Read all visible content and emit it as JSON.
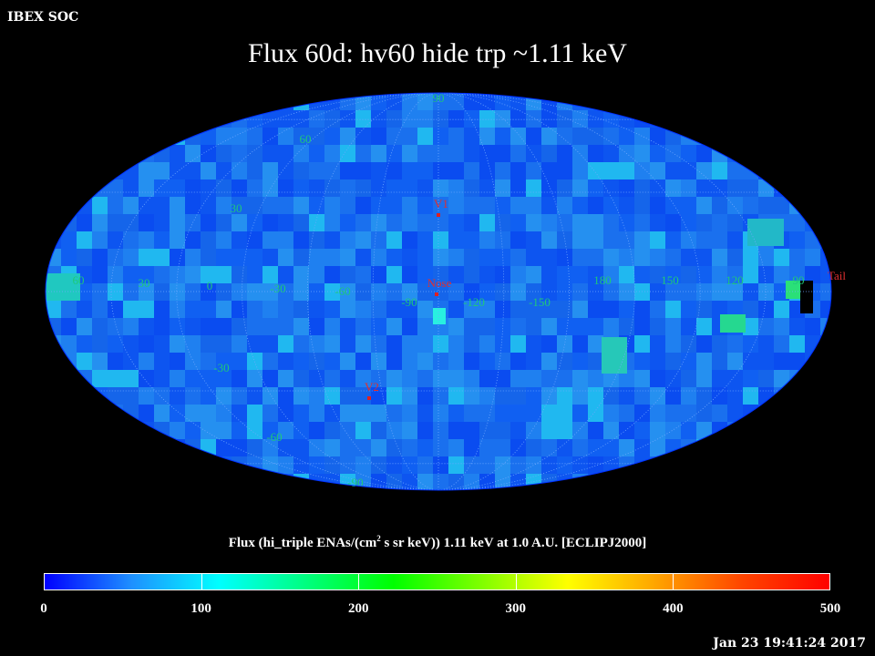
{
  "header": {
    "source": "IBEX SOC",
    "timestamp": "Jan 23 19:41:24 2017"
  },
  "chart_data": {
    "type": "heatmap",
    "projection": "aitoff/hammer all-sky",
    "title": "Flux   60d: hv60 hide trp ~1.11 keV",
    "colorbar_label": "Flux (hi_triple ENAs/(cm",
    "colorbar_label_sup": "2",
    "colorbar_label_tail": " s sr keV))  1.11 keV at 1.0 A.U. [ECLIPJ2000]",
    "colorbar_ticks": [
      "0",
      "100",
      "200",
      "300",
      "400",
      "500"
    ],
    "colorbar_range": [
      0,
      500
    ],
    "colormap": [
      "#0000ff",
      "#1e90ff",
      "#00ffff",
      "#00ff7f",
      "#00ff00",
      "#7fff00",
      "#ffff00",
      "#ffa500",
      "#ff4500",
      "#ff0000"
    ],
    "lon_labels": [
      "60",
      "30",
      "0",
      "-30",
      "-60",
      "-90",
      "-120",
      "-150",
      "180",
      "150",
      "120",
      "90"
    ],
    "lat_labels": [
      "90",
      "60",
      "30",
      "-30",
      "-60",
      "-90"
    ],
    "markers": [
      {
        "name": "V1",
        "lon": -105,
        "lat": 35
      },
      {
        "name": "Nose",
        "lon": -105,
        "lat": 5
      },
      {
        "name": "V2",
        "lon": -70,
        "lat": -32
      },
      {
        "name": "Tail",
        "lon": 75,
        "lat": 2
      }
    ],
    "features": [
      {
        "description": "green patch",
        "value": 210
      },
      {
        "description": "black null pixels near Tail",
        "value": 0
      }
    ]
  }
}
